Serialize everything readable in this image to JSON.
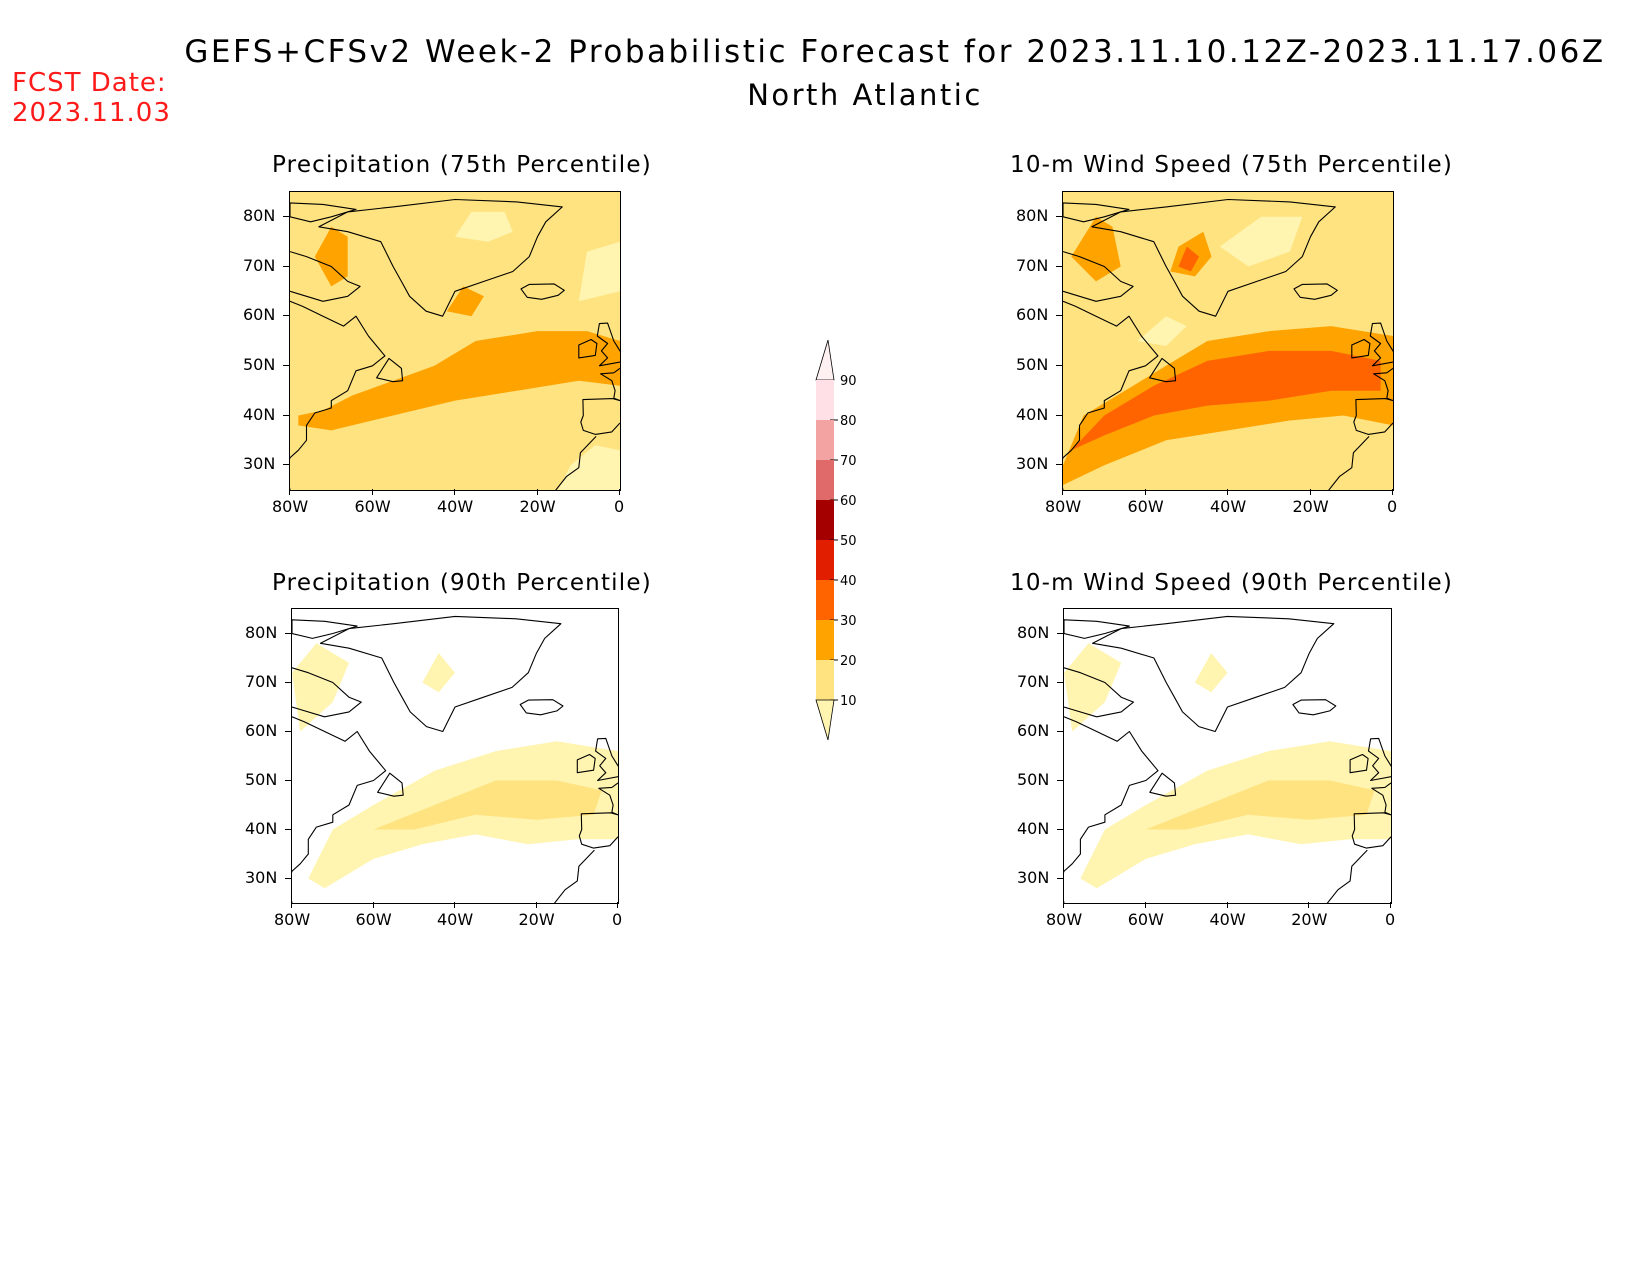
{
  "header": {
    "title": "GEFS+CFSv2 Week-2 Probabilistic Forecast for 2023.11.10.12Z-2023.11.17.06Z",
    "subtitle": "North Atlantic",
    "fcst_label": "FCST Date:",
    "fcst_date": "2023.11.03"
  },
  "panels": [
    {
      "id": "precip75",
      "title": "Precipitation (75th Percentile)",
      "intensity": "high"
    },
    {
      "id": "wind75",
      "title": "10-m Wind Speed (75th Percentile)",
      "intensity": "very-high"
    },
    {
      "id": "precip90",
      "title": "Precipitation (90th Percentile)",
      "intensity": "low"
    },
    {
      "id": "wind90",
      "title": "10-m Wind Speed (90th Percentile)",
      "intensity": "low"
    }
  ],
  "axes": {
    "lat_labels": [
      "80N",
      "70N",
      "60N",
      "50N",
      "40N",
      "30N"
    ],
    "lon_labels": [
      "80W",
      "60W",
      "40W",
      "20W",
      "0"
    ]
  },
  "colorbar": {
    "labels": [
      "90",
      "80",
      "70",
      "60",
      "50",
      "40",
      "30",
      "20",
      "10"
    ],
    "colors": [
      "#fff4b0",
      "#ffe380",
      "#ffa300",
      "#ff6400",
      "#e11e00",
      "#a50000",
      "#e06a6a",
      "#f4a3a3",
      "#ffe0e6"
    ]
  }
}
